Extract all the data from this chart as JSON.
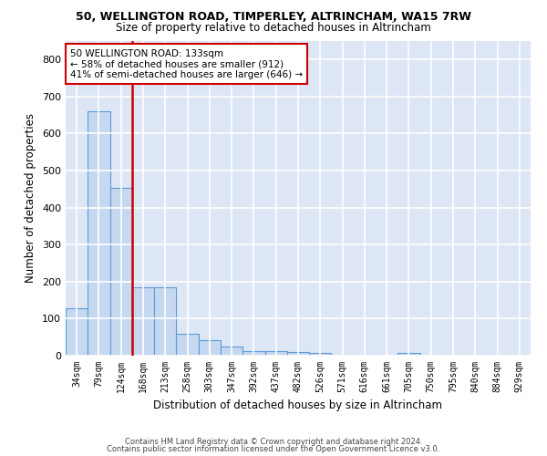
{
  "title1": "50, WELLINGTON ROAD, TIMPERLEY, ALTRINCHAM, WA15 7RW",
  "title2": "Size of property relative to detached houses in Altrincham",
  "xlabel": "Distribution of detached houses by size in Altrincham",
  "ylabel": "Number of detached properties",
  "categories": [
    "34sqm",
    "79sqm",
    "124sqm",
    "168sqm",
    "213sqm",
    "258sqm",
    "303sqm",
    "347sqm",
    "392sqm",
    "437sqm",
    "482sqm",
    "526sqm",
    "571sqm",
    "616sqm",
    "661sqm",
    "705sqm",
    "750sqm",
    "795sqm",
    "840sqm",
    "884sqm",
    "929sqm"
  ],
  "values": [
    128,
    660,
    453,
    185,
    185,
    60,
    43,
    25,
    13,
    13,
    11,
    8,
    0,
    0,
    0,
    8,
    0,
    0,
    0,
    0,
    0
  ],
  "bar_color": "#c5d8f0",
  "bar_edge_color": "#5a9bd5",
  "vline_color": "#cc0000",
  "vline_x": 2.5,
  "annotation_text": "50 WELLINGTON ROAD: 133sqm\n← 58% of detached houses are smaller (912)\n41% of semi-detached houses are larger (646) →",
  "annotation_box_color": "white",
  "annotation_box_edge": "#cc0000",
  "bg_color": "#dde6f5",
  "grid_color": "white",
  "footer1": "Contains HM Land Registry data © Crown copyright and database right 2024.",
  "footer2": "Contains public sector information licensed under the Open Government Licence v3.0.",
  "ylim": [
    0,
    850
  ],
  "yticks": [
    0,
    100,
    200,
    300,
    400,
    500,
    600,
    700,
    800
  ]
}
